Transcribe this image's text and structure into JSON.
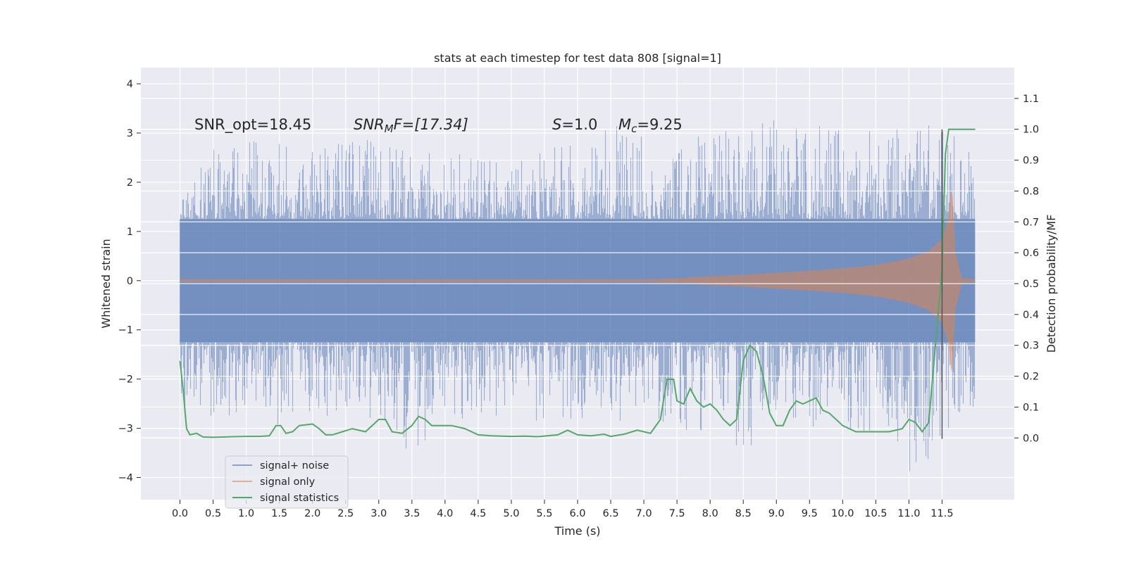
{
  "chart_data": {
    "type": "line",
    "title": "stats at each timestep for test data 808 [signal=1]",
    "xlabel": "Time (s)",
    "ylabel": "Whitened strain",
    "ylabel_right": "Detection probability/MF",
    "xlim": [
      -0.59,
      12.59
    ],
    "ylim": [
      -4.45,
      4.33
    ],
    "ylim_right": [
      -0.2,
      1.2
    ],
    "x_ticks": [
      "0.0",
      "0.5",
      "1.0",
      "1.5",
      "2.0",
      "2.5",
      "3.0",
      "3.5",
      "4.0",
      "4.5",
      "5.0",
      "5.5",
      "6.0",
      "6.5",
      "7.0",
      "7.5",
      "8.0",
      "8.5",
      "9.0",
      "9.5",
      "10.0",
      "10.5",
      "11.0",
      "11.5"
    ],
    "y_ticks": [
      "4",
      "3",
      "2",
      "1",
      "0",
      "−1",
      "−2",
      "−3",
      "−4"
    ],
    "y_ticks_right": [
      "1.1",
      "1.0",
      "0.9",
      "0.8",
      "0.7",
      "0.6",
      "0.5",
      "0.4",
      "0.3",
      "0.2",
      "0.1",
      "0.0"
    ],
    "grid": true,
    "legend_position": "lower-left",
    "annotations": {
      "snr_opt": "SNR_opt=18.45",
      "snr_mf_main": "SNR",
      "snr_mf_sub": "M",
      "snr_mf_rest": "F=[17.34]",
      "s_symbol": "S",
      "s_value": "=1.0",
      "mc_symbol": "M",
      "mc_sub": "c",
      "mc_value": "=9.25"
    },
    "noise_envelope": {
      "t": [
        0,
        0.5,
        1,
        1.5,
        2,
        2.5,
        3,
        3.5,
        4,
        4.5,
        5,
        5.5,
        6,
        6.5,
        7,
        7.5,
        8,
        8.5,
        9,
        9.5,
        10,
        10.5,
        11,
        11.5,
        12
      ],
      "upper": [
        1.7,
        2.8,
        2.9,
        2.8,
        2.9,
        3.0,
        2.8,
        2.9,
        2.7,
        2.8,
        2.6,
        2.9,
        2.8,
        3.2,
        2.9,
        2.8,
        3.0,
        3.1,
        3.3,
        3.6,
        3.0,
        3.1,
        3.2,
        3.2,
        2.5
      ],
      "lower": [
        -2.5,
        -2.9,
        -2.8,
        -3.0,
        -2.9,
        -2.6,
        -2.9,
        -3.6,
        -3.0,
        -2.8,
        -2.7,
        -2.9,
        -2.8,
        -3.0,
        -2.8,
        -3.0,
        -3.3,
        -3.5,
        -2.9,
        -3.0,
        -3.0,
        -3.1,
        -4.1,
        -3.3,
        -2.8
      ],
      "core": 1.25
    },
    "signal_envelope": {
      "t": [
        0,
        7.0,
        7.5,
        8.0,
        8.5,
        9.0,
        9.5,
        10.0,
        10.5,
        11.0,
        11.3,
        11.5,
        11.6,
        11.65,
        11.7,
        11.8,
        12.0
      ],
      "amp": [
        0.03,
        0.03,
        0.05,
        0.09,
        0.12,
        0.16,
        0.2,
        0.25,
        0.32,
        0.45,
        0.6,
        0.85,
        1.3,
        2.0,
        0.6,
        0.05,
        0.03
      ]
    },
    "series": [
      {
        "name": "signal+ noise",
        "color": "#4c72b0"
      },
      {
        "name": "signal only",
        "color": "#dd8452"
      },
      {
        "name": "signal statistics",
        "color": "#55a868",
        "x": [
          0.0,
          0.05,
          0.1,
          0.15,
          0.25,
          0.35,
          0.5,
          0.65,
          0.8,
          1.0,
          1.2,
          1.35,
          1.45,
          1.52,
          1.6,
          1.7,
          1.8,
          2.0,
          2.1,
          2.2,
          2.3,
          2.45,
          2.6,
          2.8,
          3.0,
          3.1,
          3.2,
          3.35,
          3.5,
          3.6,
          3.7,
          3.8,
          3.95,
          4.1,
          4.3,
          4.5,
          4.7,
          5.0,
          5.2,
          5.4,
          5.7,
          5.85,
          6.0,
          6.2,
          6.4,
          6.5,
          6.7,
          6.9,
          7.1,
          7.25,
          7.35,
          7.45,
          7.5,
          7.6,
          7.7,
          7.8,
          7.9,
          8.0,
          8.1,
          8.2,
          8.3,
          8.4,
          8.5,
          8.6,
          8.7,
          8.8,
          8.9,
          9.0,
          9.1,
          9.2,
          9.3,
          9.4,
          9.5,
          9.6,
          9.7,
          9.8,
          10.0,
          10.2,
          10.5,
          10.7,
          10.9,
          11.0,
          11.1,
          11.2,
          11.3,
          11.4,
          11.5,
          11.55,
          11.6,
          11.65,
          11.7,
          11.8,
          12.0
        ],
        "y": [
          0.25,
          0.15,
          0.03,
          0.01,
          0.015,
          0.003,
          0.002,
          0.003,
          0.004,
          0.005,
          0.005,
          0.007,
          0.04,
          0.04,
          0.015,
          0.02,
          0.04,
          0.045,
          0.03,
          0.01,
          0.01,
          0.02,
          0.03,
          0.02,
          0.06,
          0.06,
          0.02,
          0.015,
          0.04,
          0.07,
          0.06,
          0.04,
          0.04,
          0.04,
          0.03,
          0.01,
          0.007,
          0.005,
          0.006,
          0.004,
          0.01,
          0.025,
          0.01,
          0.007,
          0.012,
          0.005,
          0.012,
          0.025,
          0.015,
          0.06,
          0.19,
          0.19,
          0.12,
          0.11,
          0.16,
          0.12,
          0.1,
          0.11,
          0.09,
          0.06,
          0.04,
          0.06,
          0.25,
          0.3,
          0.28,
          0.2,
          0.08,
          0.04,
          0.04,
          0.09,
          0.12,
          0.11,
          0.12,
          0.13,
          0.09,
          0.08,
          0.04,
          0.02,
          0.02,
          0.02,
          0.03,
          0.06,
          0.05,
          0.02,
          0.05,
          0.3,
          0.55,
          0.92,
          1.0,
          1.0,
          1.0,
          1.0,
          1.0
        ]
      }
    ],
    "vline": {
      "x": 11.5,
      "y_range": [
        -0.003,
        1.0
      ]
    }
  }
}
